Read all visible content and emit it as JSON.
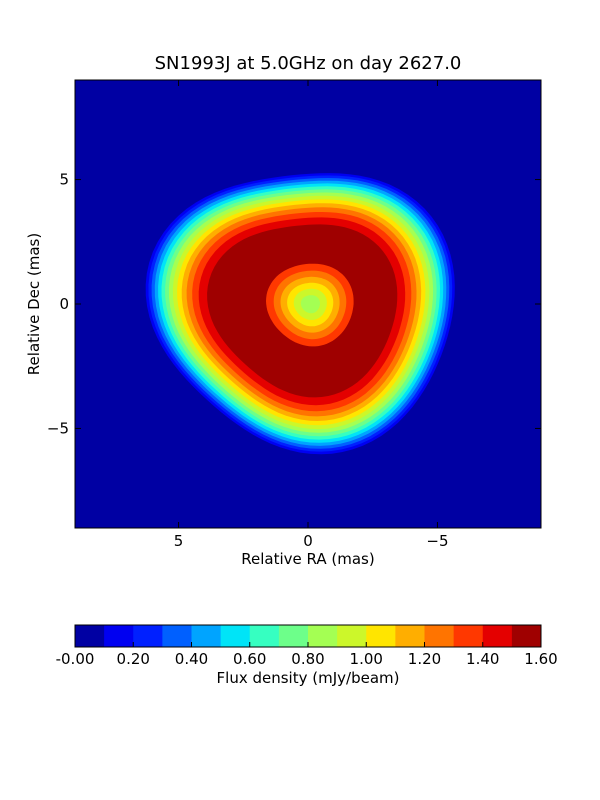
{
  "chart_data": {
    "type": "heatmap",
    "subtype": "filled-contour",
    "title": "SN1993J at 5.0GHz on day 2627.0",
    "xlabel": "Relative RA (mas)",
    "ylabel": "Relative Dec (mas)",
    "xlim": [
      9,
      -9
    ],
    "ylim": [
      -9,
      9
    ],
    "x_ticks": [
      5,
      0,
      -5
    ],
    "x_tick_labels": [
      "5",
      "0",
      "−5"
    ],
    "y_ticks": [
      5,
      0,
      -5
    ],
    "y_tick_labels": [
      "5",
      "0",
      "−5"
    ],
    "background_level": 0.0,
    "ring": {
      "shape": "shell with brighter rim and central dimmer core",
      "outer_edge_radius_mas": 5.8,
      "peak_flux": 1.6,
      "core_flux": 0.8
    },
    "colorbar": {
      "label": "Flux density (mJy/beam)",
      "orientation": "horizontal",
      "levels": [
        0.0,
        0.1,
        0.2,
        0.3,
        0.4,
        0.5,
        0.6,
        0.7,
        0.8,
        0.9,
        1.0,
        1.1,
        1.2,
        1.3,
        1.4,
        1.5,
        1.6
      ],
      "tick_values": [
        0.0,
        0.2,
        0.4,
        0.6,
        0.8,
        1.0,
        1.2,
        1.4,
        1.6
      ],
      "tick_labels": [
        "-0.00",
        "0.20",
        "0.40",
        "0.60",
        "0.80",
        "1.00",
        "1.20",
        "1.40",
        "1.60"
      ],
      "colors": [
        "#0000a3",
        "#0000f1",
        "#0020ff",
        "#0060ff",
        "#00a4ff",
        "#00e4f7",
        "#36ffc1",
        "#6dff8a",
        "#a4ff53",
        "#ccf72a",
        "#ffe500",
        "#ffae00",
        "#ff7400",
        "#ff3800",
        "#e40000",
        "#9f0000"
      ]
    }
  }
}
